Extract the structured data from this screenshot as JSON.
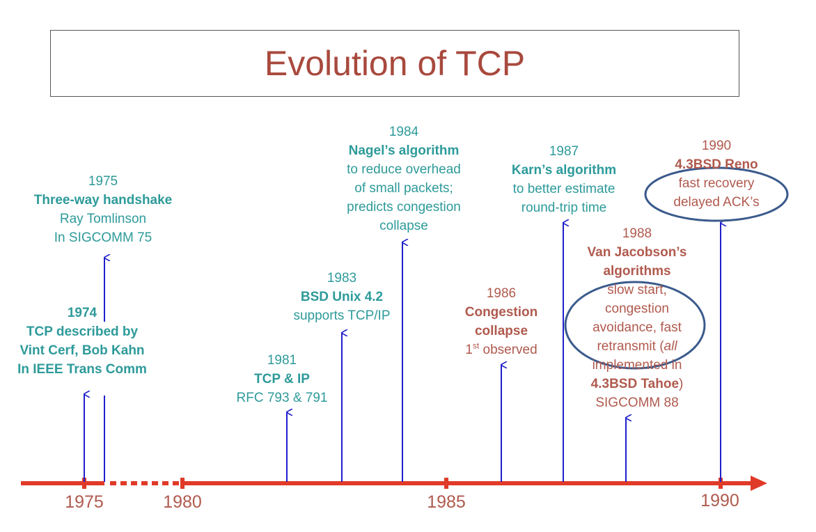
{
  "title": "Evolution of TCP",
  "colors": {
    "title": "#a8493d",
    "axis": "#e03a28",
    "arrow": "#1f1fcc",
    "teal_text": "#2e9a9a",
    "red_text": "#b05a4e",
    "ellipse": "#3a5a8c"
  },
  "axis": {
    "ticks": [
      "1975",
      "1980",
      "1985",
      "1990"
    ]
  },
  "events": {
    "e1975": {
      "year": "1975",
      "title": "Three-way handshake",
      "line1": "Ray Tomlinson",
      "line2": "In SIGCOMM 75"
    },
    "e1974": {
      "year": "1974",
      "title1": "TCP described by",
      "title2": "Vint Cerf, Bob Kahn",
      "title3": "In IEEE Trans Comm"
    },
    "e1981": {
      "year": "1981",
      "title": "TCP & IP",
      "line1": "RFC 793 & 791"
    },
    "e1983": {
      "year": "1983",
      "title": "BSD Unix 4.2",
      "line1": "supports TCP/IP"
    },
    "e1984": {
      "year": "1984",
      "title": "Nagel’s algorithm",
      "line1": "to reduce overhead",
      "line2": "of small packets;",
      "line3": "predicts congestion",
      "line4": "collapse"
    },
    "e1986": {
      "year": "1986",
      "title1": "Congestion",
      "title2": "collapse",
      "ordinal": "1",
      "ordinal_suffix": "st",
      "line1": " observed"
    },
    "e1987": {
      "year": "1987",
      "title": "Karn’s algorithm",
      "line1": "to better estimate",
      "line2": "round-trip time"
    },
    "e1988": {
      "year": "1988",
      "title1": "Van Jacobson’s",
      "title2": "algorithms",
      "line1": "slow start,",
      "line2": "congestion",
      "line3": "avoidance, fast",
      "line4_a": "retransmit (",
      "line4_b": "all",
      "line5": "implemented in",
      "title3": "4.3BSD Tahoe",
      "paren": ")",
      "line6": "SIGCOMM 88"
    },
    "e1990": {
      "year": "1990",
      "title": "4.3BSD Reno",
      "line1": "fast recovery",
      "line2": "delayed ACK’s"
    }
  }
}
